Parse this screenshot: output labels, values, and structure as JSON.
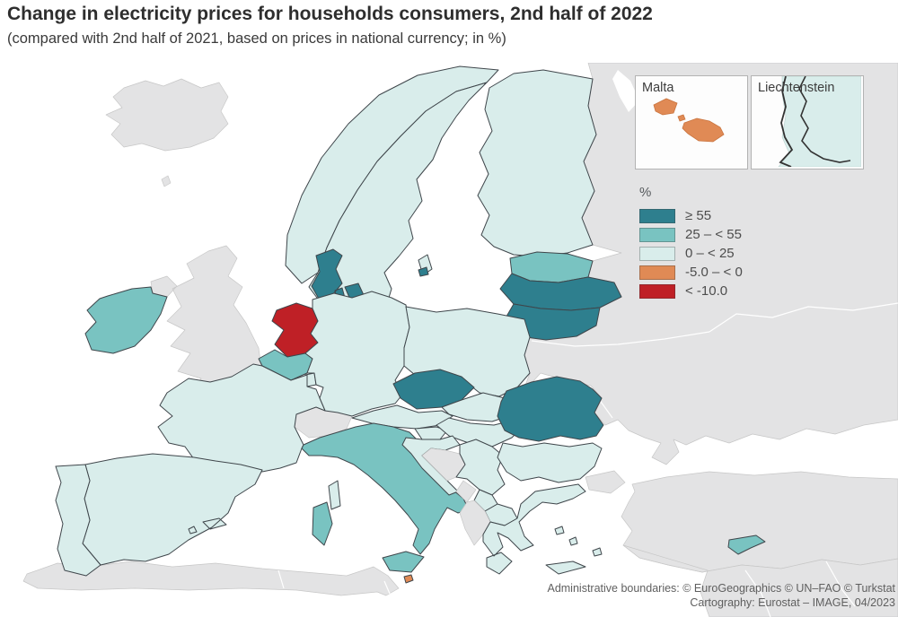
{
  "title": "Change in electricity prices for households consumers, 2nd half of 2022",
  "subtitle": "(compared with 2nd half of 2021, based on prices in national currency; in %)",
  "legend": {
    "title": "%",
    "items": [
      {
        "key": "ge_55",
        "label": "≥ 55",
        "color": "#2e7f8e"
      },
      {
        "key": "25_55",
        "label": "25 – < 55",
        "color": "#79c3c1"
      },
      {
        "key": "0_25",
        "label": "0 – < 25",
        "color": "#d9edeb"
      },
      {
        "key": "neg5_0",
        "label": "-5.0 – < 0",
        "color": "#e08a55"
      },
      {
        "key": "lt_neg10",
        "label": "< -10.0",
        "color": "#bf2026"
      }
    ]
  },
  "insets": {
    "malta": {
      "label": "Malta"
    },
    "liechtenstein": {
      "label": "Liechtenstein"
    }
  },
  "footer": {
    "line1": "Administrative boundaries: © EuroGeographics © UN–FAO © Turkstat",
    "line2": "Cartography: Eurostat – IMAGE, 04/2023"
  },
  "map": {
    "sea_color": "#ffffff",
    "no_data_color": "#e3e3e4",
    "countries": {
      "Iceland": "no_data",
      "Norway": "0_25",
      "Sweden": "0_25",
      "Finland": "0_25",
      "Estonia": "25_55",
      "Latvia": "ge_55",
      "Lithuania": "ge_55",
      "Denmark": "ge_55",
      "Ireland": "25_55",
      "United Kingdom": "no_data",
      "Netherlands": "lt_neg10",
      "Belgium": "25_55",
      "Luxembourg": "0_25",
      "Germany": "0_25",
      "Poland": "0_25",
      "Czechia": "ge_55",
      "Slovakia": "0_25",
      "Austria": "0_25",
      "Switzerland": "no_data",
      "France": "0_25",
      "Spain": "0_25",
      "Portugal": "0_25",
      "Italy": "25_55",
      "Slovenia": "0_25",
      "Hungary": "0_25",
      "Croatia": "0_25",
      "Bosnia and Herzegovina": "no_data",
      "Serbia": "0_25",
      "Montenegro": "no_data",
      "Kosovo": "0_25",
      "Albania": "no_data",
      "North Macedonia": "0_25",
      "Romania": "ge_55",
      "Bulgaria": "0_25",
      "Greece": "0_25",
      "Moldova": "no_data",
      "Ukraine": "no_data",
      "Belarus": "no_data",
      "Russia": "no_data",
      "Turkey": "no_data",
      "Cyprus": "25_55",
      "Malta": "neg5_0",
      "Liechtenstein": "0_25"
    }
  }
}
